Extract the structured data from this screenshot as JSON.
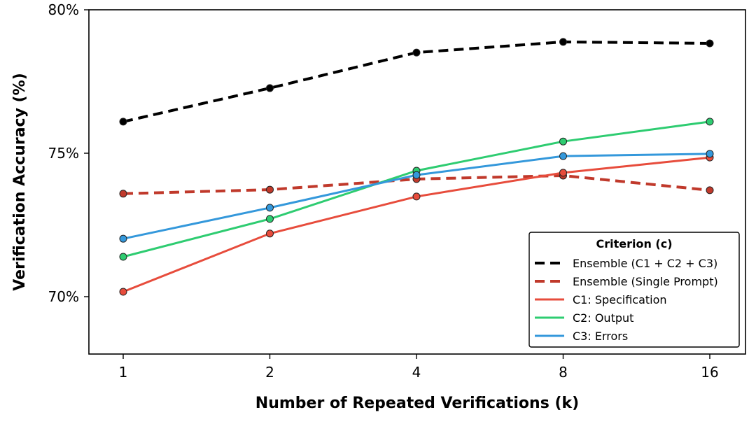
{
  "chart_data": {
    "type": "line",
    "xlabel": "Number of Repeated Verifications (k)",
    "ylabel": "Verification Accuracy (%)",
    "x": [
      1,
      2,
      4,
      8,
      16
    ],
    "x_tick_labels": [
      "1",
      "2",
      "4",
      "8",
      "16"
    ],
    "x_scale": "log2",
    "ylim": [
      68,
      80
    ],
    "y_ticks": [
      70,
      75,
      80
    ],
    "y_tick_labels": [
      "70%",
      "75%",
      "80%"
    ],
    "grid": false,
    "legend": {
      "title": "Criterion (c)",
      "placement": "lower-right"
    },
    "series": [
      {
        "name": "Ensemble (C1 + C2 + C3)",
        "color": "#000000",
        "dashed": true,
        "values": [
          76.1,
          77.27,
          78.51,
          78.88,
          78.83
        ]
      },
      {
        "name": "Ensemble (Single Prompt)",
        "color": "#c0392b",
        "dashed": true,
        "values": [
          73.59,
          73.73,
          74.1,
          74.22,
          73.71
        ]
      },
      {
        "name": "C1: Specification",
        "color": "#e74c3c",
        "dashed": false,
        "values": [
          70.17,
          72.2,
          73.49,
          74.32,
          74.85
        ]
      },
      {
        "name": "C2: Output",
        "color": "#2ecc71",
        "dashed": false,
        "values": [
          71.39,
          72.71,
          74.39,
          75.41,
          76.1
        ]
      },
      {
        "name": "C3: Errors",
        "color": "#3498db",
        "dashed": false,
        "values": [
          72.02,
          73.1,
          74.24,
          74.9,
          74.98
        ]
      }
    ]
  }
}
